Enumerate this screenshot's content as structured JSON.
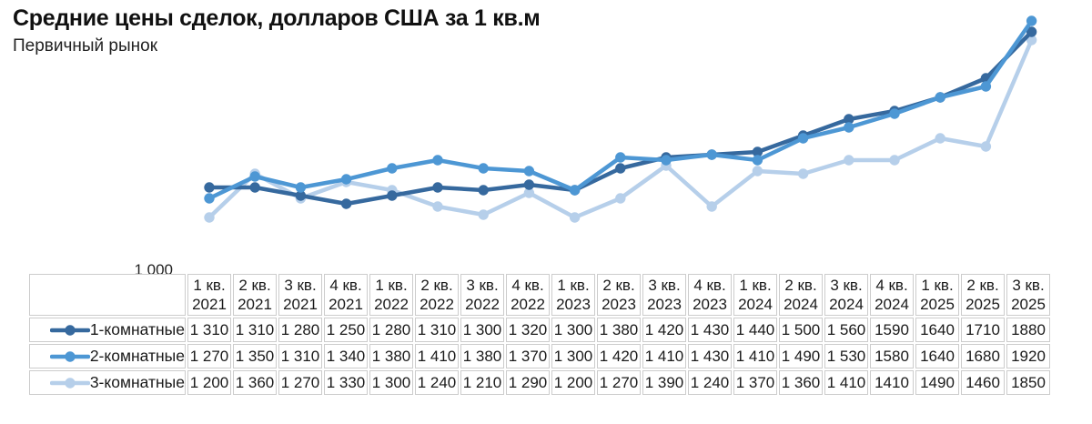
{
  "header": {
    "title": "Средние цены сделок, долларов США за 1 кв.м",
    "subtitle": "Первичный рынок"
  },
  "y_axis": {
    "min_label": "1 000"
  },
  "table": {
    "columns": [
      {
        "quarter": "1 кв.",
        "year": "2021"
      },
      {
        "quarter": "2 кв.",
        "year": "2021"
      },
      {
        "quarter": "3 кв.",
        "year": "2021"
      },
      {
        "quarter": "4 кв.",
        "year": "2021"
      },
      {
        "quarter": "1 кв.",
        "year": "2022"
      },
      {
        "quarter": "2 кв.",
        "year": "2022"
      },
      {
        "quarter": "3 кв.",
        "year": "2022"
      },
      {
        "quarter": "4 кв.",
        "year": "2022"
      },
      {
        "quarter": "1 кв.",
        "year": "2023"
      },
      {
        "quarter": "2 кв.",
        "year": "2023"
      },
      {
        "quarter": "3 кв.",
        "year": "2023"
      },
      {
        "quarter": "4 кв.",
        "year": "2023"
      },
      {
        "quarter": "1 кв.",
        "year": "2024"
      },
      {
        "quarter": "2 кв.",
        "year": "2024"
      },
      {
        "quarter": "3 кв.",
        "year": "2024"
      },
      {
        "quarter": "4 кв.",
        "year": "2024"
      },
      {
        "quarter": "1 кв.",
        "year": "2025"
      },
      {
        "quarter": "2 кв.",
        "year": "2025"
      },
      {
        "quarter": "3 кв.",
        "year": "2025"
      }
    ],
    "rows": [
      {
        "label": "1-комнатные",
        "color": "#36699e",
        "display": [
          "1 310",
          "1 310",
          "1 280",
          "1 250",
          "1 280",
          "1 310",
          "1 300",
          "1 320",
          "1 300",
          "1 380",
          "1 420",
          "1 430",
          "1 440",
          "1 500",
          "1 560",
          "1590",
          "1640",
          "1710",
          "1880"
        ]
      },
      {
        "label": "2-комнатные",
        "color": "#4d97d4",
        "display": [
          "1 270",
          "1 350",
          "1 310",
          "1 340",
          "1 380",
          "1 410",
          "1 380",
          "1 370",
          "1 300",
          "1 420",
          "1 410",
          "1 430",
          "1 410",
          "1 490",
          "1 530",
          "1580",
          "1640",
          "1680",
          "1920"
        ]
      },
      {
        "label": "3-комнатные",
        "color": "#b6cfea",
        "display": [
          "1 200",
          "1 360",
          "1 270",
          "1 330",
          "1 300",
          "1 240",
          "1 210",
          "1 290",
          "1 200",
          "1 270",
          "1 390",
          "1 240",
          "1 370",
          "1 360",
          "1 410",
          "1410",
          "1490",
          "1460",
          "1850"
        ]
      }
    ]
  },
  "chart_data": {
    "type": "line",
    "title": "Средние цены сделок, долларов США за 1 кв.м",
    "subtitle": "Первичный рынок",
    "categories": [
      "1 кв. 2021",
      "2 кв. 2021",
      "3 кв. 2021",
      "4 кв. 2021",
      "1 кв. 2022",
      "2 кв. 2022",
      "3 кв. 2022",
      "4 кв. 2022",
      "1 кв. 2023",
      "2 кв. 2023",
      "3 кв. 2023",
      "4 кв. 2023",
      "1 кв. 2024",
      "2 кв. 2024",
      "3 кв. 2024",
      "4 кв. 2024",
      "1 кв. 2025",
      "2 кв. 2025",
      "3 кв. 2025"
    ],
    "series": [
      {
        "name": "1-комнатные",
        "color": "#36699e",
        "values": [
          1310,
          1310,
          1280,
          1250,
          1280,
          1310,
          1300,
          1320,
          1300,
          1380,
          1420,
          1430,
          1440,
          1500,
          1560,
          1590,
          1640,
          1710,
          1880
        ]
      },
      {
        "name": "2-комнатные",
        "color": "#4d97d4",
        "values": [
          1270,
          1350,
          1310,
          1340,
          1380,
          1410,
          1380,
          1370,
          1300,
          1420,
          1410,
          1430,
          1410,
          1490,
          1530,
          1580,
          1640,
          1680,
          1920
        ]
      },
      {
        "name": "3-комнатные",
        "color": "#b6cfea",
        "values": [
          1200,
          1360,
          1270,
          1330,
          1300,
          1240,
          1210,
          1290,
          1200,
          1270,
          1390,
          1240,
          1370,
          1360,
          1410,
          1410,
          1490,
          1460,
          1850
        ]
      }
    ],
    "ylim": [
      1000,
      1966
    ],
    "y_tick_labels": [
      "1 000"
    ],
    "xlabel": "",
    "ylabel": "",
    "grid": false,
    "markers": true,
    "legend_position": "left-of-table-rows"
  }
}
